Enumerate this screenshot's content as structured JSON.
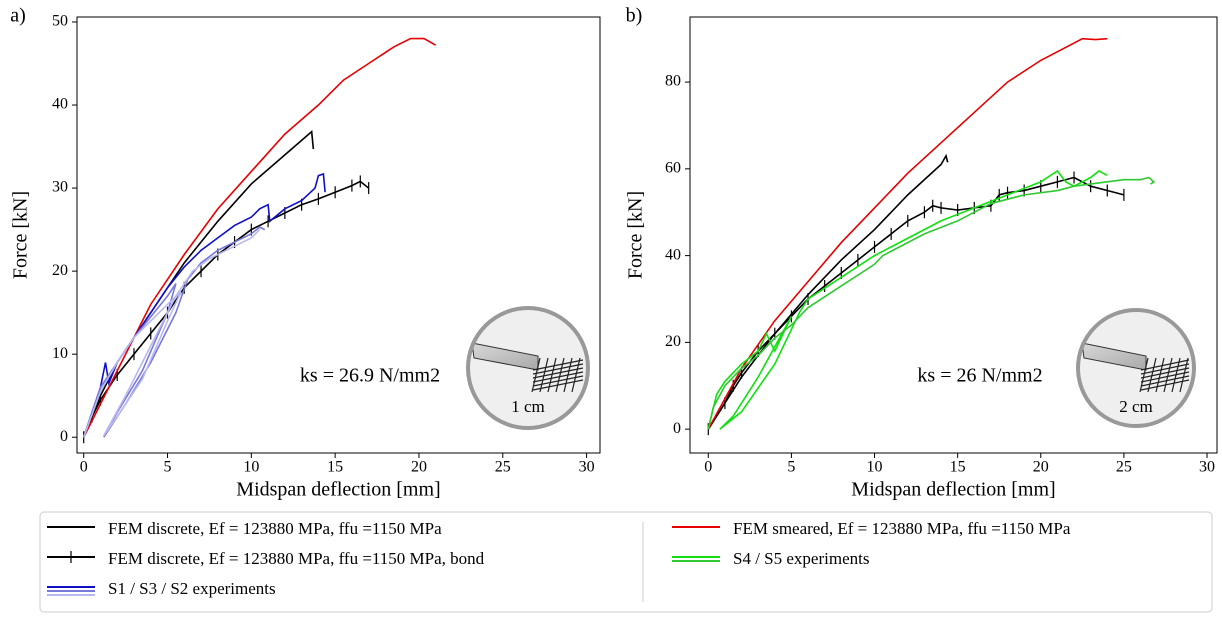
{
  "chart_data": [
    {
      "type": "line",
      "panel_label": "a)",
      "xlabel": "Midspan deflection [mm]",
      "ylabel": "Force [kN]",
      "xlim": [
        -0.4,
        30.8
      ],
      "ylim": [
        -1.9,
        50.6
      ],
      "xticks": [
        0,
        5,
        10,
        15,
        20,
        25,
        30
      ],
      "yticks": [
        0,
        10,
        20,
        30,
        40,
        50
      ],
      "annotations": [
        "ks = 26.9 N/mm2",
        "1 cm"
      ],
      "series": [
        {
          "name": "FEM discrete, Ef = 123880 MPa, ffu =1150 MPa",
          "color": "#000000",
          "x": [
            0,
            1,
            2,
            3,
            4,
            5,
            6,
            8,
            10,
            12,
            13.6,
            13.7
          ],
          "values": [
            0,
            5,
            9,
            12,
            15,
            18,
            21,
            26,
            30.5,
            34,
            36.8,
            34.7
          ]
        },
        {
          "name": "FEM discrete, Ef = 123880 MPa, ffu =1150 MPa, bond",
          "color": "#000000",
          "marker": "|",
          "x": [
            0,
            0.5,
            1,
            2,
            3,
            4,
            5,
            6,
            7,
            8,
            9,
            10,
            11,
            12,
            13,
            14,
            15,
            16,
            16.5,
            17
          ],
          "values": [
            0,
            2.5,
            4.5,
            7.5,
            10,
            12.5,
            15,
            18,
            20,
            22,
            23.5,
            25,
            26,
            27,
            28,
            28.7,
            29.5,
            30.3,
            30.8,
            30
          ]
        },
        {
          "color": "#e60000",
          "x": [
            0,
            2,
            4,
            6,
            8,
            10,
            12,
            14,
            15.5,
            17,
            18.5,
            19.5,
            20.3,
            21
          ],
          "values": [
            0,
            8,
            16,
            22,
            27.5,
            32,
            36.5,
            40,
            43,
            45,
            47,
            48,
            48,
            47.2
          ]
        },
        {
          "name": "S1 / S3 / S2 experiments",
          "runs": [
            {
              "color": "#1010c8",
              "x": [
                0,
                0.5,
                1,
                1.3,
                1.5,
                2,
                3,
                4,
                5,
                6,
                7,
                8,
                9,
                10,
                10.5,
                11,
                11.1,
                12,
                13,
                13.8,
                14,
                14.3,
                14.4
              ],
              "values": [
                0,
                3,
                6,
                9,
                6.5,
                9,
                12,
                15,
                18,
                20.5,
                22.5,
                24,
                25.5,
                26.5,
                27.5,
                28,
                26,
                27.5,
                28.5,
                30,
                31.5,
                31.7,
                29.5
              ]
            },
            {
              "color": "#7878dc",
              "x": [
                0,
                1,
                2,
                3,
                4,
                5,
                5.5,
                5,
                3.5,
                2,
                1.2,
                2.5,
                4,
                5.5,
                6.2,
                7,
                8,
                9,
                10,
                10.5,
                10.8
              ],
              "values": [
                0,
                6,
                9,
                12,
                14.5,
                17,
                18.5,
                15,
                8,
                3,
                0,
                4,
                9,
                15,
                19,
                21,
                22.5,
                23.5,
                24.5,
                25.3,
                25
              ]
            },
            {
              "color": "#b8b8f0",
              "x": [
                0,
                1,
                2,
                3,
                4,
                5,
                5.8,
                5,
                3.5,
                2,
                1.2,
                2.5,
                4,
                5.5,
                6.5,
                7.5,
                9,
                10,
                10.5
              ],
              "values": [
                0,
                5.5,
                9,
                12,
                14,
                16,
                17.5,
                14,
                7,
                2.5,
                0.2,
                5,
                11,
                17,
                20,
                21.5,
                23,
                24,
                25
              ]
            }
          ]
        }
      ]
    },
    {
      "type": "line",
      "panel_label": "b)",
      "xlabel": "Midspan deflection [mm]",
      "ylabel": "Force [kN]",
      "xlim": [
        -1.1,
        30.6
      ],
      "ylim": [
        -5.5,
        95
      ],
      "xticks": [
        0,
        5,
        10,
        15,
        20,
        25,
        30
      ],
      "yticks": [
        0,
        20,
        40,
        60,
        80
      ],
      "annotations": [
        "ks = 26 N/mm2",
        "2 cm"
      ],
      "series": [
        {
          "color": "#000000",
          "x": [
            0,
            2,
            4,
            6,
            8,
            10,
            12,
            14,
            14.3,
            14.4
          ],
          "values": [
            0,
            12,
            22,
            31,
            39,
            46,
            54,
            61,
            63,
            61.5
          ]
        },
        {
          "color": "#000000",
          "marker": "|",
          "x": [
            0,
            1,
            1.5,
            2,
            3,
            4,
            5,
            6,
            7,
            8,
            9,
            10,
            11,
            12,
            13,
            13.5,
            14,
            15,
            16,
            17,
            17.5,
            18,
            19,
            20,
            21,
            22,
            23,
            24,
            25
          ],
          "values": [
            0,
            6,
            10,
            13,
            18,
            22,
            26,
            30,
            33,
            36,
            39,
            42,
            45,
            48,
            50,
            51.5,
            51,
            50.5,
            51,
            51.5,
            54,
            54.5,
            55,
            56,
            57,
            58,
            56,
            55,
            54
          ]
        },
        {
          "name": "FEM smeared, Ef = 123880 MPa, ffu =1150 MPa",
          "color": "#e60000",
          "x": [
            0,
            2,
            4,
            6,
            8,
            10,
            12,
            14,
            16,
            18,
            20,
            22,
            22.5,
            23.3,
            24
          ],
          "values": [
            0,
            14,
            25,
            34,
            43,
            51,
            59,
            66,
            73,
            80,
            85,
            89,
            90,
            89.8,
            90
          ]
        },
        {
          "name": "S4 / S5 experiments",
          "runs": [
            {
              "color": "#10e010",
              "x": [
                0,
                0.5,
                1,
                2,
                3,
                3.5,
                4,
                5,
                3,
                1.5,
                0.7,
                2,
                4,
                5.5,
                6,
                8,
                10,
                12,
                14,
                16,
                18,
                20,
                21,
                21.5,
                22,
                23,
                23.5,
                24
              ],
              "values": [
                0,
                8,
                11,
                15,
                18,
                22,
                18,
                26,
                12,
                3,
                0,
                4,
                15,
                27,
                30,
                35,
                40,
                44,
                48,
                51,
                54,
                57,
                59.5,
                57,
                56,
                58,
                59.5,
                58.5
              ]
            },
            {
              "color": "#30c830",
              "x": [
                0,
                0.3,
                1,
                2,
                3,
                4,
                5,
                6,
                8,
                10,
                10.5,
                11,
                13,
                15,
                17,
                19,
                21,
                22,
                24,
                25,
                26,
                26.5,
                26.8,
                26.6
              ],
              "values": [
                0,
                5,
                10,
                14,
                17,
                21,
                24,
                28,
                33,
                38,
                40,
                41,
                45,
                48,
                52,
                54,
                55,
                56,
                57,
                57.5,
                57.5,
                58,
                57,
                56.5
              ]
            }
          ]
        }
      ]
    }
  ]
}
